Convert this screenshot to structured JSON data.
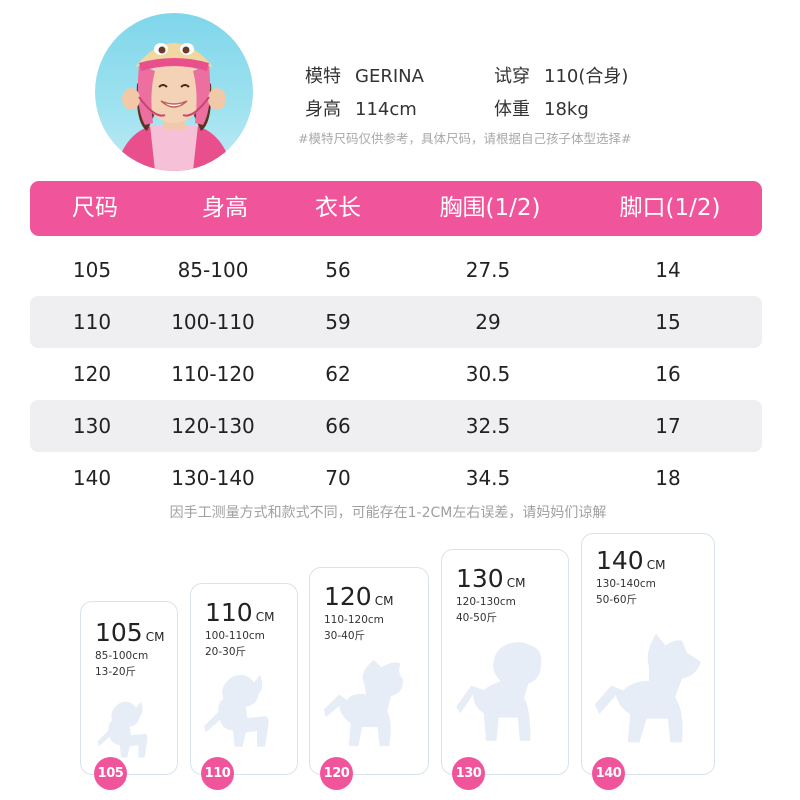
{
  "model": {
    "name_label": "模特",
    "name_value": "GERINA",
    "trial_label": "试穿",
    "trial_value": "110(合身)",
    "height_label": "身高",
    "height_value": "114cm",
    "weight_label": "体重",
    "weight_value": "18kg",
    "note": "#模特尺码仅供参考，具体尺码，请根据自己孩子体型选择#"
  },
  "table": {
    "headers": [
      "尺码",
      "身高",
      "衣长",
      "胸围(1/2)",
      "脚口(1/2)"
    ],
    "rows": [
      [
        "105",
        "85-100",
        "56",
        "27.5",
        "14"
      ],
      [
        "110",
        "100-110",
        "59",
        "29",
        "15"
      ],
      [
        "120",
        "110-120",
        "62",
        "30.5",
        "16"
      ],
      [
        "130",
        "120-130",
        "66",
        "32.5",
        "17"
      ],
      [
        "140",
        "130-140",
        "70",
        "34.5",
        "18"
      ]
    ]
  },
  "table_note": "因手工测量方式和款式不同，可能存在1-2CM左右误差，请妈妈们谅解",
  "cards": [
    {
      "size": "105",
      "unit": "CM",
      "height": "85-100cm",
      "weight": "13-20斤",
      "badge": "105"
    },
    {
      "size": "110",
      "unit": "CM",
      "height": "100-110cm",
      "weight": "20-30斤",
      "badge": "110"
    },
    {
      "size": "120",
      "unit": "CM",
      "height": "110-120cm",
      "weight": "30-40斤",
      "badge": "120"
    },
    {
      "size": "130",
      "unit": "CM",
      "height": "120-130cm",
      "weight": "40-50斤",
      "badge": "130"
    },
    {
      "size": "140",
      "unit": "CM",
      "height": "130-140cm",
      "weight": "50-60斤",
      "badge": "140"
    }
  ],
  "colors": {
    "accent": "#f0559b",
    "row_alt": "#efeff1",
    "card_border": "#d7e3ef",
    "silhouette": "#e6edf6"
  }
}
